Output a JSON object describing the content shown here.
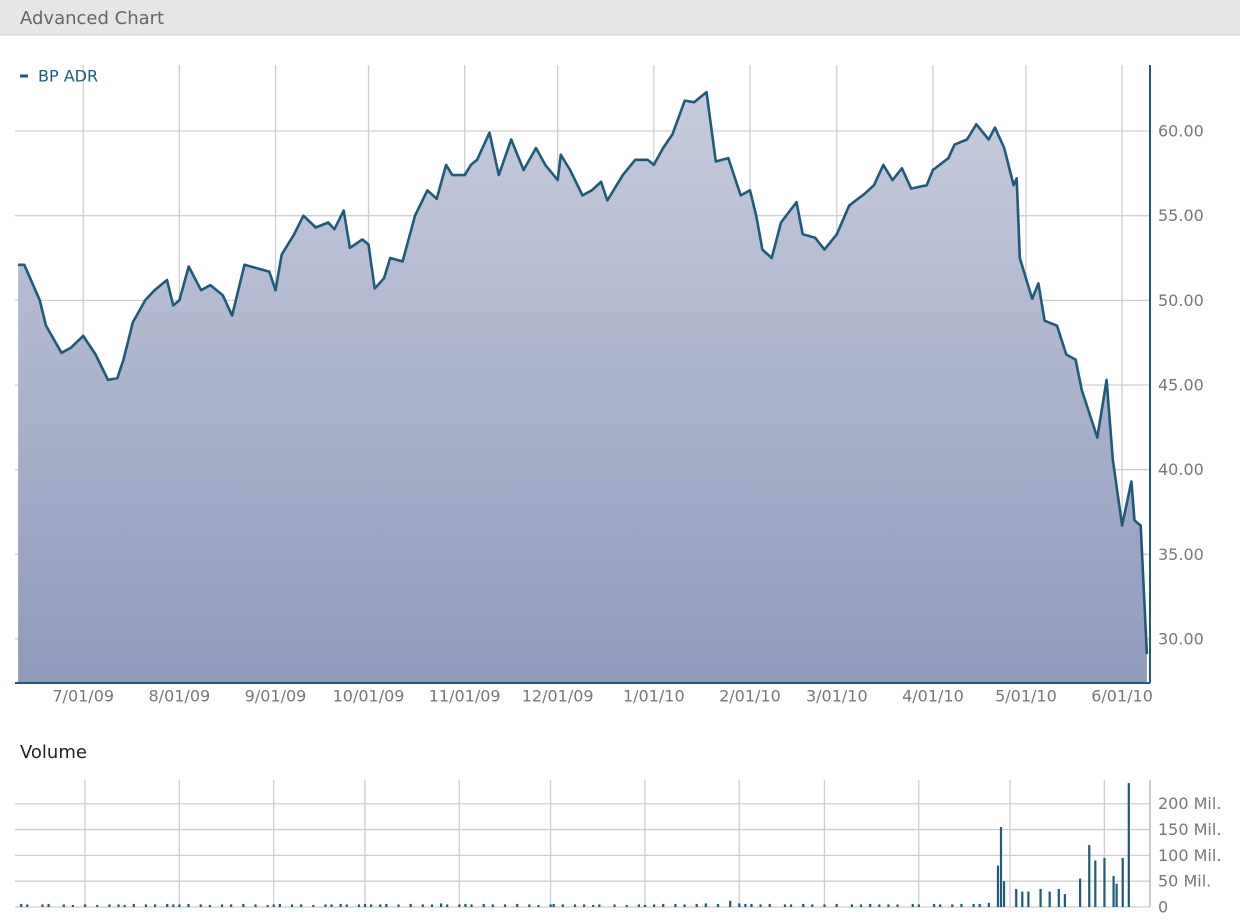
{
  "header": {
    "title": "Advanced Chart"
  },
  "chart_data": [
    {
      "type": "area",
      "x": [
        "2009-06-10",
        "2009-06-12",
        "2009-06-17",
        "2009-06-19",
        "2009-06-24",
        "2009-06-27",
        "2009-07-01",
        "2009-07-05",
        "2009-07-09",
        "2009-07-12",
        "2009-07-14",
        "2009-07-17",
        "2009-07-21",
        "2009-07-24",
        "2009-07-28",
        "2009-07-30",
        "2009-08-01",
        "2009-08-04",
        "2009-08-08",
        "2009-08-11",
        "2009-08-15",
        "2009-08-18",
        "2009-08-22",
        "2009-08-26",
        "2009-08-30",
        "2009-09-01",
        "2009-09-03",
        "2009-09-07",
        "2009-09-10",
        "2009-09-14",
        "2009-09-18",
        "2009-09-20",
        "2009-09-23",
        "2009-09-25",
        "2009-09-29",
        "2009-10-01",
        "2009-10-03",
        "2009-10-06",
        "2009-10-08",
        "2009-10-12",
        "2009-10-16",
        "2009-10-20",
        "2009-10-23",
        "2009-10-26",
        "2009-10-28",
        "2009-11-01",
        "2009-11-03",
        "2009-11-05",
        "2009-11-09",
        "2009-11-12",
        "2009-11-16",
        "2009-11-20",
        "2009-11-24",
        "2009-11-27",
        "2009-12-01",
        "2009-12-02",
        "2009-12-05",
        "2009-12-09",
        "2009-12-12",
        "2009-12-15",
        "2009-12-17",
        "2009-12-22",
        "2009-12-26",
        "2009-12-30",
        "2010-01-01",
        "2010-01-04",
        "2010-01-07",
        "2010-01-11",
        "2010-01-14",
        "2010-01-18",
        "2010-01-21",
        "2010-01-25",
        "2010-01-29",
        "2010-02-01",
        "2010-02-03",
        "2010-02-05",
        "2010-02-08",
        "2010-02-11",
        "2010-02-16",
        "2010-02-18",
        "2010-02-22",
        "2010-02-25",
        "2010-03-01",
        "2010-03-05",
        "2010-03-10",
        "2010-03-13",
        "2010-03-16",
        "2010-03-19",
        "2010-03-22",
        "2010-03-25",
        "2010-03-30",
        "2010-04-01",
        "2010-04-06",
        "2010-04-08",
        "2010-04-12",
        "2010-04-15",
        "2010-04-19",
        "2010-04-21",
        "2010-04-24",
        "2010-04-27",
        "2010-04-28",
        "2010-04-29",
        "2010-05-03",
        "2010-05-05",
        "2010-05-07",
        "2010-05-11",
        "2010-05-14",
        "2010-05-17",
        "2010-05-19",
        "2010-05-24",
        "2010-05-27",
        "2010-05-29",
        "2010-06-01",
        "2010-06-04",
        "2010-06-05",
        "2010-06-07",
        "2010-06-09"
      ],
      "series": [
        {
          "name": "BP ADR",
          "color": "#1f5a7a",
          "values": [
            52.1,
            52.1,
            50.0,
            48.5,
            46.9,
            47.2,
            47.9,
            46.8,
            45.3,
            45.4,
            46.5,
            48.7,
            50.0,
            50.6,
            51.2,
            49.7,
            50.0,
            52.0,
            50.6,
            50.9,
            50.3,
            49.1,
            52.1,
            51.9,
            51.7,
            50.6,
            52.7,
            53.9,
            55.0,
            54.3,
            54.6,
            54.2,
            55.3,
            53.1,
            53.6,
            53.3,
            50.7,
            51.3,
            52.5,
            52.3,
            55.0,
            56.5,
            56.0,
            58.0,
            57.4,
            57.4,
            58.0,
            58.3,
            59.9,
            57.4,
            59.5,
            57.7,
            59.0,
            58.0,
            57.1,
            58.6,
            57.7,
            56.2,
            56.5,
            57.0,
            55.9,
            57.4,
            58.3,
            58.3,
            58.0,
            59.0,
            59.8,
            61.8,
            61.7,
            62.3,
            58.2,
            58.4,
            56.2,
            56.5,
            55.0,
            53.0,
            52.5,
            54.6,
            55.8,
            53.9,
            53.7,
            53.0,
            53.9,
            55.6,
            56.3,
            56.8,
            58.0,
            57.1,
            57.8,
            56.6,
            56.8,
            57.7,
            58.4,
            59.2,
            59.5,
            60.4,
            59.5,
            60.2,
            59.0,
            56.8,
            57.2,
            52.5,
            50.1,
            51.0,
            48.8,
            48.5,
            46.8,
            46.5,
            44.7,
            41.9,
            45.3,
            40.6,
            36.7,
            39.3,
            37.0,
            36.7,
            29.1
          ]
        }
      ],
      "xlim": [
        "2009-06-09",
        "2010-06-10"
      ],
      "xticks": [
        {
          "value": "2009-07-01",
          "label": "7/01/09"
        },
        {
          "value": "2009-08-01",
          "label": "8/01/09"
        },
        {
          "value": "2009-09-01",
          "label": "9/01/09"
        },
        {
          "value": "2009-10-01",
          "label": "10/01/09"
        },
        {
          "value": "2009-11-01",
          "label": "11/01/09"
        },
        {
          "value": "2009-12-01",
          "label": "12/01/09"
        },
        {
          "value": "2010-01-01",
          "label": "1/01/10"
        },
        {
          "value": "2010-02-01",
          "label": "2/01/10"
        },
        {
          "value": "2010-03-01",
          "label": "3/01/10"
        },
        {
          "value": "2010-04-01",
          "label": "4/01/10"
        },
        {
          "value": "2010-05-01",
          "label": "5/01/10"
        },
        {
          "value": "2010-06-01",
          "label": "6/01/10"
        }
      ],
      "ylim": [
        27.4,
        63.9
      ],
      "yticks": [
        {
          "value": 30,
          "label": "30.00"
        },
        {
          "value": 35,
          "label": "35.00"
        },
        {
          "value": 40,
          "label": "40.00"
        },
        {
          "value": 45,
          "label": "45.00"
        },
        {
          "value": 50,
          "label": "50.00"
        },
        {
          "value": 55,
          "label": "55.00"
        },
        {
          "value": 60,
          "label": "60.00"
        }
      ],
      "grid": true,
      "legend": "top-left"
    },
    {
      "type": "bar",
      "title": "Volume",
      "color": "#1f5a7a",
      "x": [
        "2009-06-10",
        "2009-06-12",
        "2009-06-17",
        "2009-06-19",
        "2009-06-24",
        "2009-06-27",
        "2009-07-01",
        "2009-07-05",
        "2009-07-09",
        "2009-07-12",
        "2009-07-14",
        "2009-07-17",
        "2009-07-21",
        "2009-07-24",
        "2009-07-28",
        "2009-07-30",
        "2009-08-01",
        "2009-08-04",
        "2009-08-08",
        "2009-08-11",
        "2009-08-15",
        "2009-08-18",
        "2009-08-22",
        "2009-08-26",
        "2009-08-30",
        "2009-09-01",
        "2009-09-03",
        "2009-09-07",
        "2009-09-10",
        "2009-09-14",
        "2009-09-18",
        "2009-09-20",
        "2009-09-23",
        "2009-09-25",
        "2009-09-29",
        "2009-10-01",
        "2009-10-03",
        "2009-10-06",
        "2009-10-08",
        "2009-10-12",
        "2009-10-16",
        "2009-10-20",
        "2009-10-23",
        "2009-10-26",
        "2009-10-28",
        "2009-11-01",
        "2009-11-03",
        "2009-11-05",
        "2009-11-09",
        "2009-11-12",
        "2009-11-16",
        "2009-11-20",
        "2009-11-24",
        "2009-11-27",
        "2009-12-01",
        "2009-12-02",
        "2009-12-05",
        "2009-12-09",
        "2009-12-12",
        "2009-12-15",
        "2009-12-17",
        "2009-12-22",
        "2009-12-26",
        "2009-12-30",
        "2010-01-01",
        "2010-01-04",
        "2010-01-07",
        "2010-01-11",
        "2010-01-14",
        "2010-01-18",
        "2010-01-21",
        "2010-01-25",
        "2010-01-29",
        "2010-02-01",
        "2010-02-03",
        "2010-02-05",
        "2010-02-08",
        "2010-02-11",
        "2010-02-16",
        "2010-02-18",
        "2010-02-22",
        "2010-02-25",
        "2010-03-01",
        "2010-03-05",
        "2010-03-10",
        "2010-03-13",
        "2010-03-16",
        "2010-03-19",
        "2010-03-22",
        "2010-03-25",
        "2010-03-30",
        "2010-04-01",
        "2010-04-06",
        "2010-04-08",
        "2010-04-12",
        "2010-04-15",
        "2010-04-19",
        "2010-04-21",
        "2010-04-24",
        "2010-04-27",
        "2010-04-28",
        "2010-04-29",
        "2010-05-03",
        "2010-05-05",
        "2010-05-07",
        "2010-05-11",
        "2010-05-14",
        "2010-05-17",
        "2010-05-19",
        "2010-05-24",
        "2010-05-27",
        "2010-05-29",
        "2010-06-01",
        "2010-06-04",
        "2010-06-05",
        "2010-06-07",
        "2010-06-09"
      ],
      "values": [
        6,
        5,
        5,
        6,
        5,
        4,
        5,
        4,
        5,
        5,
        4,
        6,
        5,
        5,
        6,
        5,
        5,
        6,
        5,
        4,
        5,
        5,
        6,
        5,
        4,
        5,
        6,
        5,
        5,
        4,
        5,
        5,
        6,
        5,
        5,
        6,
        5,
        5,
        6,
        5,
        6,
        5,
        5,
        7,
        5,
        5,
        6,
        5,
        6,
        5,
        5,
        6,
        5,
        4,
        5,
        6,
        5,
        5,
        5,
        4,
        5,
        5,
        4,
        5,
        4,
        5,
        6,
        6,
        5,
        6,
        7,
        6,
        12,
        7,
        6,
        6,
        5,
        6,
        5,
        5,
        6,
        5,
        5,
        6,
        5,
        5,
        6,
        5,
        5,
        5,
        6,
        5,
        6,
        5,
        5,
        6,
        6,
        6,
        8,
        80,
        155,
        50,
        35,
        30,
        30,
        35,
        30,
        35,
        25,
        55,
        120,
        90,
        95,
        60,
        45,
        95,
        240
      ],
      "xlim": [
        "2009-06-08",
        "2010-06-16"
      ],
      "ylim": [
        0,
        246
      ],
      "yticks": [
        0,
        {
          "value": 50,
          "label": "50 Mil."
        },
        {
          "value": 100,
          "label": "100 Mil."
        },
        {
          "value": 150,
          "label": "150 Mil."
        },
        {
          "value": 200,
          "label": "200 Mil."
        }
      ],
      "grid": true
    }
  ]
}
